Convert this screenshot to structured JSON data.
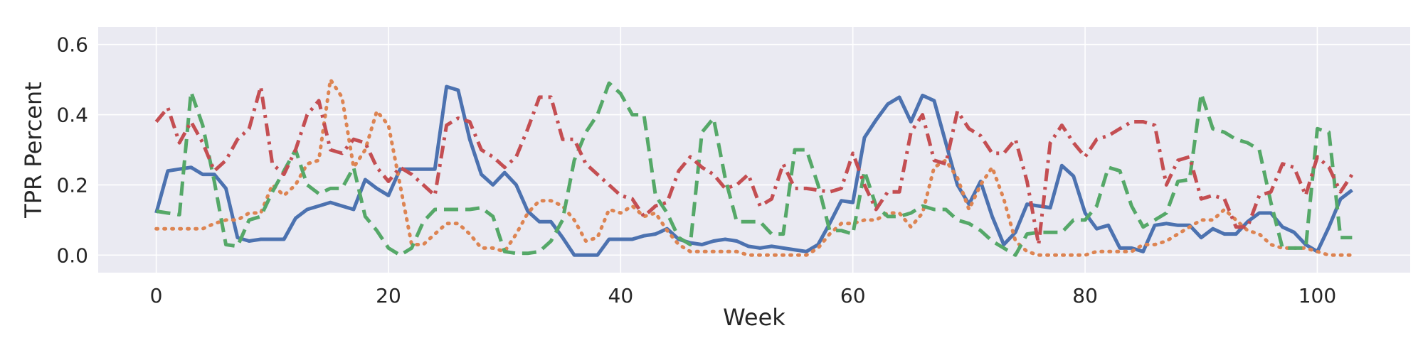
{
  "chart_data": {
    "type": "line",
    "title": "",
    "xlabel": "Week",
    "ylabel": "TPR Percent",
    "xlim": [
      -5,
      108
    ],
    "ylim": [
      -0.05,
      0.65
    ],
    "xticks": [
      0,
      20,
      40,
      60,
      80,
      100
    ],
    "yticks": [
      0.0,
      0.2,
      0.4,
      0.6
    ],
    "xtick_labels": [
      "0",
      "20",
      "40",
      "60",
      "80",
      "100"
    ],
    "ytick_labels": [
      "0.0",
      "0.2",
      "0.4",
      "0.6"
    ],
    "grid": true,
    "background": "#eaeaf2",
    "series": [
      {
        "color": "#4c72b0",
        "dash": "solid",
        "x": [
          0,
          1,
          2,
          3,
          4,
          5,
          6,
          7,
          8,
          9,
          10,
          11,
          12,
          13,
          14,
          15,
          16,
          17,
          18,
          19,
          20,
          21,
          22,
          23,
          24,
          25,
          26,
          27,
          28,
          29,
          30,
          31,
          32,
          33,
          34,
          35,
          36,
          37,
          38,
          39,
          40,
          41,
          42,
          43,
          44,
          45,
          46,
          47,
          48,
          49,
          50,
          51,
          52,
          53,
          54,
          55,
          56,
          57,
          58,
          59,
          60,
          61,
          62,
          63,
          64,
          65,
          66,
          67,
          68,
          69,
          70,
          71,
          72,
          73,
          74,
          75,
          76,
          77,
          78,
          79,
          80,
          81,
          82,
          83,
          84,
          85,
          86,
          87,
          88,
          89,
          90,
          91,
          92,
          93,
          94,
          95,
          96,
          97,
          98,
          99,
          100,
          101,
          102,
          103
        ],
        "values": [
          0.12,
          0.24,
          0.245,
          0.25,
          0.23,
          0.23,
          0.19,
          0.05,
          0.04,
          0.045,
          0.045,
          0.045,
          0.105,
          0.13,
          0.14,
          0.15,
          0.14,
          0.13,
          0.215,
          0.19,
          0.17,
          0.245,
          0.245,
          0.245,
          0.245,
          0.48,
          0.47,
          0.33,
          0.23,
          0.2,
          0.235,
          0.2,
          0.125,
          0.095,
          0.095,
          0.05,
          0.0,
          0.0,
          0.0,
          0.045,
          0.045,
          0.045,
          0.055,
          0.06,
          0.075,
          0.045,
          0.035,
          0.03,
          0.04,
          0.045,
          0.04,
          0.025,
          0.02,
          0.025,
          0.02,
          0.015,
          0.01,
          0.03,
          0.09,
          0.155,
          0.15,
          0.335,
          0.385,
          0.43,
          0.45,
          0.38,
          0.455,
          0.44,
          0.32,
          0.2,
          0.145,
          0.21,
          0.11,
          0.03,
          0.065,
          0.145,
          0.14,
          0.135,
          0.255,
          0.225,
          0.12,
          0.075,
          0.085,
          0.02,
          0.02,
          0.01,
          0.085,
          0.09,
          0.085,
          0.085,
          0.05,
          0.075,
          0.06,
          0.06,
          0.095,
          0.12,
          0.12,
          0.08,
          0.065,
          0.03,
          0.01,
          0.08,
          0.16,
          0.185
        ]
      },
      {
        "color": "#dd8452",
        "dash": "dotted",
        "x": [
          0,
          1,
          2,
          3,
          4,
          5,
          6,
          7,
          8,
          9,
          10,
          11,
          12,
          13,
          14,
          15,
          16,
          17,
          18,
          19,
          20,
          21,
          22,
          23,
          24,
          25,
          26,
          27,
          28,
          29,
          30,
          31,
          32,
          33,
          34,
          35,
          36,
          37,
          38,
          39,
          40,
          41,
          42,
          43,
          44,
          45,
          46,
          47,
          48,
          49,
          50,
          51,
          52,
          53,
          54,
          55,
          56,
          57,
          58,
          59,
          60,
          61,
          62,
          63,
          64,
          65,
          66,
          67,
          68,
          69,
          70,
          71,
          72,
          73,
          74,
          75,
          76,
          77,
          78,
          79,
          80,
          81,
          82,
          83,
          84,
          85,
          86,
          87,
          88,
          89,
          90,
          91,
          92,
          93,
          94,
          95,
          96,
          97,
          98,
          99,
          100,
          101,
          102,
          103
        ],
        "values": [
          0.075,
          0.075,
          0.075,
          0.075,
          0.075,
          0.09,
          0.1,
          0.1,
          0.12,
          0.12,
          0.2,
          0.17,
          0.2,
          0.26,
          0.27,
          0.5,
          0.45,
          0.25,
          0.3,
          0.41,
          0.37,
          0.2,
          0.03,
          0.03,
          0.06,
          0.09,
          0.09,
          0.06,
          0.02,
          0.02,
          0.01,
          0.06,
          0.12,
          0.155,
          0.155,
          0.14,
          0.1,
          0.04,
          0.05,
          0.13,
          0.12,
          0.14,
          0.11,
          0.12,
          0.07,
          0.03,
          0.01,
          0.01,
          0.01,
          0.01,
          0.01,
          0.0,
          0.0,
          0.0,
          0.0,
          0.0,
          0.0,
          0.02,
          0.06,
          0.09,
          0.09,
          0.1,
          0.1,
          0.12,
          0.12,
          0.08,
          0.12,
          0.25,
          0.27,
          0.22,
          0.13,
          0.2,
          0.25,
          0.16,
          0.04,
          0.01,
          0.0,
          0.0,
          0.0,
          0.0,
          0.0,
          0.01,
          0.01,
          0.01,
          0.01,
          0.03,
          0.03,
          0.04,
          0.06,
          0.08,
          0.1,
          0.1,
          0.13,
          0.1,
          0.07,
          0.06,
          0.03,
          0.02,
          0.02,
          0.02,
          0.01,
          0.0,
          0.0,
          0.0
        ]
      },
      {
        "color": "#55a868",
        "dash": "dashed",
        "x": [
          0,
          1,
          2,
          3,
          4,
          5,
          6,
          7,
          8,
          9,
          10,
          11,
          12,
          13,
          14,
          15,
          16,
          17,
          18,
          19,
          20,
          21,
          22,
          23,
          24,
          25,
          26,
          27,
          28,
          29,
          30,
          31,
          32,
          33,
          34,
          35,
          36,
          37,
          38,
          39,
          40,
          41,
          42,
          43,
          44,
          45,
          46,
          47,
          48,
          49,
          50,
          51,
          52,
          53,
          54,
          55,
          56,
          57,
          58,
          59,
          60,
          61,
          62,
          63,
          64,
          65,
          66,
          67,
          68,
          69,
          70,
          71,
          72,
          73,
          74,
          75,
          76,
          77,
          78,
          79,
          80,
          81,
          82,
          83,
          84,
          85,
          86,
          87,
          88,
          89,
          90,
          91,
          92,
          93,
          94,
          95,
          96,
          97,
          98,
          99,
          100,
          101,
          102,
          103
        ],
        "values": [
          0.125,
          0.12,
          0.115,
          0.465,
          0.37,
          0.21,
          0.03,
          0.025,
          0.1,
          0.11,
          0.18,
          0.24,
          0.3,
          0.2,
          0.175,
          0.19,
          0.19,
          0.25,
          0.11,
          0.07,
          0.02,
          0.0,
          0.02,
          0.095,
          0.13,
          0.13,
          0.13,
          0.13,
          0.135,
          0.11,
          0.01,
          0.005,
          0.005,
          0.01,
          0.04,
          0.1,
          0.27,
          0.35,
          0.4,
          0.49,
          0.46,
          0.4,
          0.4,
          0.17,
          0.12,
          0.05,
          0.03,
          0.35,
          0.39,
          0.22,
          0.095,
          0.095,
          0.095,
          0.06,
          0.06,
          0.3,
          0.3,
          0.2,
          0.07,
          0.07,
          0.06,
          0.24,
          0.14,
          0.11,
          0.11,
          0.12,
          0.14,
          0.13,
          0.13,
          0.1,
          0.09,
          0.07,
          0.04,
          0.02,
          0.0,
          0.06,
          0.065,
          0.065,
          0.065,
          0.1,
          0.1,
          0.14,
          0.25,
          0.24,
          0.14,
          0.08,
          0.1,
          0.12,
          0.21,
          0.215,
          0.46,
          0.36,
          0.35,
          0.33,
          0.32,
          0.3,
          0.15,
          0.02,
          0.02,
          0.02,
          0.36,
          0.35,
          0.05,
          0.05
        ]
      },
      {
        "color": "#c44e52",
        "dash": "dashdot",
        "x": [
          0,
          1,
          2,
          3,
          4,
          5,
          6,
          7,
          8,
          9,
          10,
          11,
          12,
          13,
          14,
          15,
          16,
          17,
          18,
          19,
          20,
          21,
          22,
          23,
          24,
          25,
          26,
          27,
          28,
          29,
          30,
          31,
          32,
          33,
          34,
          35,
          36,
          37,
          38,
          39,
          40,
          41,
          42,
          43,
          44,
          45,
          46,
          47,
          48,
          49,
          50,
          51,
          52,
          53,
          54,
          55,
          56,
          57,
          58,
          59,
          60,
          61,
          62,
          63,
          64,
          65,
          66,
          67,
          68,
          69,
          70,
          71,
          72,
          73,
          74,
          75,
          76,
          77,
          78,
          79,
          80,
          81,
          82,
          83,
          84,
          85,
          86,
          87,
          88,
          89,
          90,
          91,
          92,
          93,
          94,
          95,
          96,
          97,
          98,
          99,
          100,
          101,
          102,
          103
        ],
        "values": [
          0.38,
          0.42,
          0.32,
          0.38,
          0.32,
          0.24,
          0.27,
          0.33,
          0.36,
          0.48,
          0.26,
          0.23,
          0.3,
          0.4,
          0.44,
          0.3,
          0.29,
          0.33,
          0.32,
          0.25,
          0.21,
          0.25,
          0.23,
          0.2,
          0.17,
          0.37,
          0.39,
          0.38,
          0.3,
          0.28,
          0.25,
          0.28,
          0.36,
          0.45,
          0.45,
          0.33,
          0.33,
          0.26,
          0.23,
          0.2,
          0.17,
          0.16,
          0.11,
          0.14,
          0.15,
          0.24,
          0.28,
          0.25,
          0.23,
          0.19,
          0.2,
          0.23,
          0.14,
          0.16,
          0.26,
          0.19,
          0.19,
          0.185,
          0.18,
          0.19,
          0.29,
          0.2,
          0.13,
          0.18,
          0.18,
          0.35,
          0.4,
          0.27,
          0.26,
          0.41,
          0.36,
          0.34,
          0.29,
          0.29,
          0.33,
          0.21,
          0.03,
          0.32,
          0.37,
          0.32,
          0.28,
          0.33,
          0.34,
          0.36,
          0.38,
          0.38,
          0.37,
          0.2,
          0.27,
          0.28,
          0.16,
          0.17,
          0.16,
          0.08,
          0.08,
          0.17,
          0.18,
          0.26,
          0.25,
          0.17,
          0.28,
          0.25,
          0.18,
          0.23
        ]
      }
    ]
  }
}
